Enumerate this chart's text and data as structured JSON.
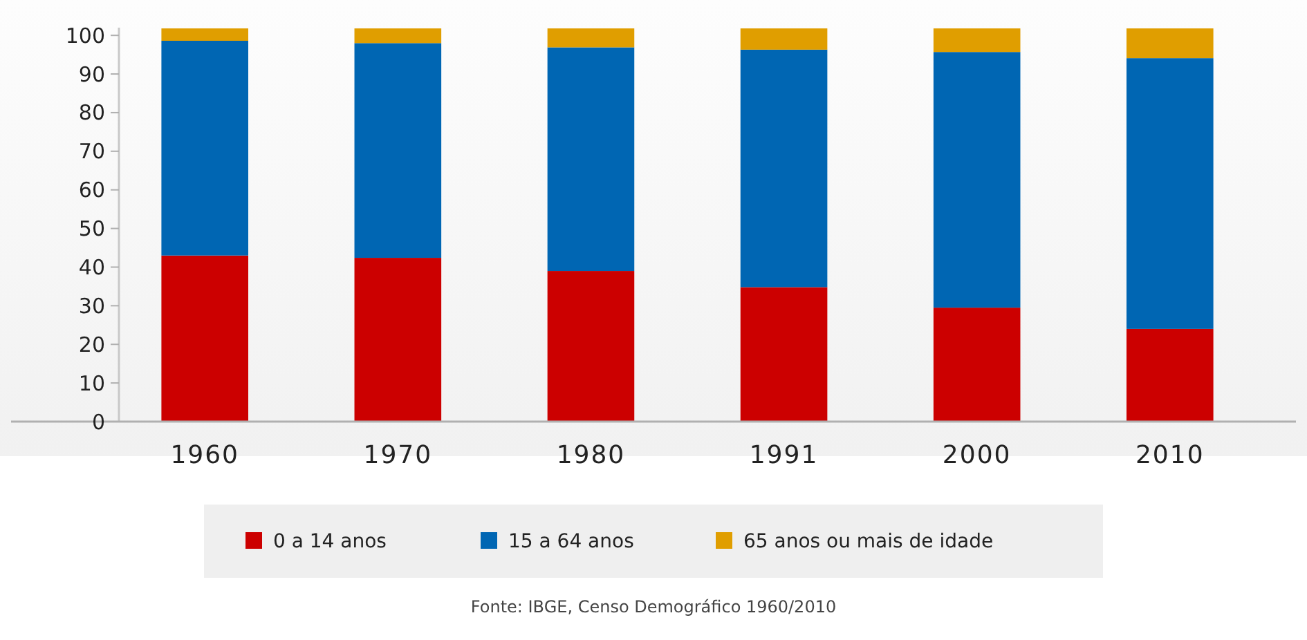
{
  "chart_data": {
    "type": "bar",
    "stacked": true,
    "categories": [
      "1960",
      "1970",
      "1980",
      "1991",
      "2000",
      "2010"
    ],
    "series": [
      {
        "name": "0 a 14 anos",
        "color": "#cc0000",
        "values": [
          43,
          42.4,
          39,
          34.8,
          29.5,
          24
        ]
      },
      {
        "name": "15 a 64 anos",
        "color": "#0066b3",
        "values": [
          55.6,
          55.6,
          57.9,
          61.5,
          66.2,
          70.1
        ]
      },
      {
        "name": "65 anos ou mais de idade",
        "color": "#e09e00",
        "values": [
          3.2,
          3.8,
          4.9,
          5.5,
          6.1,
          7.7
        ]
      }
    ],
    "ylim": [
      0,
      102
    ],
    "yticks": [
      0,
      10,
      20,
      30,
      40,
      50,
      60,
      70,
      80,
      90,
      100
    ],
    "grid": false,
    "legend": "bottom",
    "annotations": [
      "Fonte: IBGE, Censo Demográfico 1960/2010"
    ]
  }
}
